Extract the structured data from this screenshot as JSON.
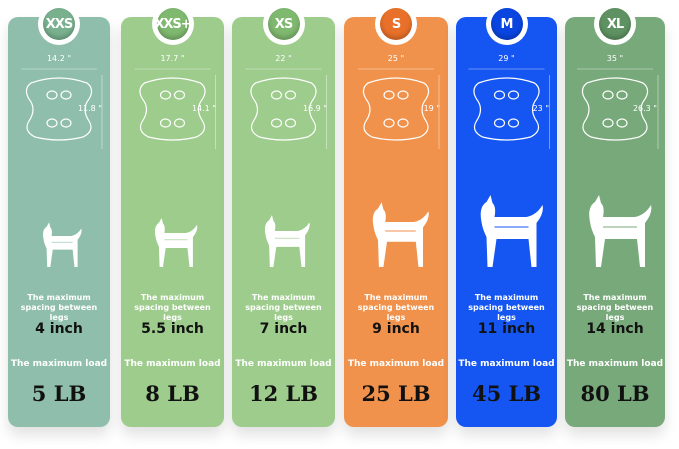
{
  "leg_spacing_label": "The maximum spacing between legs",
  "load_label": "The maximum load",
  "sizes": [
    {
      "size": "XXS",
      "width": "14.2 \"",
      "height": "11.8 \"",
      "leg_spacing": "4 inch",
      "max_load": "5 LB",
      "color": "#8fbfac",
      "badge_color": "#79b08e"
    },
    {
      "size": "XXS+",
      "width": "17.7 \"",
      "height": "14.1 \"",
      "leg_spacing": "5.5 inch",
      "max_load": "8 LB",
      "color": "#9dcc8c",
      "badge_color": "#7fb86f"
    },
    {
      "size": "XS",
      "width": "22 \"",
      "height": "16.9 \"",
      "leg_spacing": "7 inch",
      "max_load": "12 LB",
      "color": "#9dcc8c",
      "badge_color": "#7fb86f"
    },
    {
      "size": "S",
      "width": "25 \"",
      "height": "19 \"",
      "leg_spacing": "9 inch",
      "max_load": "25 LB",
      "color": "#f0924c",
      "badge_color": "#e8702a"
    },
    {
      "size": "M",
      "width": "29 \"",
      "height": "23 \"",
      "leg_spacing": "11 inch",
      "max_load": "45 LB",
      "color": "#1556f2",
      "badge_color": "#0a45e0"
    },
    {
      "size": "XL",
      "width": "35 \"",
      "height": "26.3 \"",
      "leg_spacing": "14 inch",
      "max_load": "80 LB",
      "color": "#78a97a",
      "badge_color": "#5f9262"
    }
  ]
}
